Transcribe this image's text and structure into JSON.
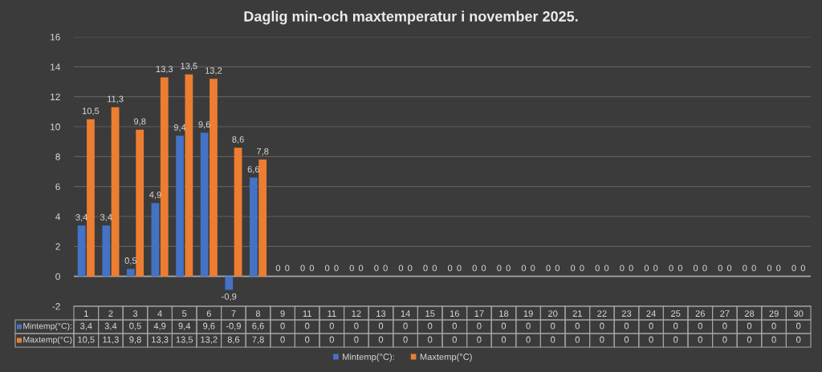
{
  "chart_data": {
    "type": "bar",
    "title": "Daglig min-och maxtemperatur i november 2025.",
    "categories": [
      "1",
      "2",
      "3",
      "4",
      "5",
      "6",
      "7",
      "8",
      "9",
      "11",
      "11",
      "12",
      "13",
      "14",
      "15",
      "16",
      "17",
      "18",
      "19",
      "20",
      "21",
      "22",
      "23",
      "24",
      "25",
      "26",
      "27",
      "28",
      "29",
      "30"
    ],
    "series": [
      {
        "name": "Mintemp(°C):",
        "color": "#4472c4",
        "values": [
          3.4,
          3.4,
          0.5,
          4.9,
          9.4,
          9.6,
          -0.9,
          6.6,
          0,
          0,
          0,
          0,
          0,
          0,
          0,
          0,
          0,
          0,
          0,
          0,
          0,
          0,
          0,
          0,
          0,
          0,
          0,
          0,
          0,
          0
        ],
        "value_labels": [
          "3,4",
          "3,4",
          "0,5",
          "4,9",
          "9,4",
          "9,6",
          "-0,9",
          "6,6",
          "0",
          "0",
          "0",
          "0",
          "0",
          "0",
          "0",
          "0",
          "0",
          "0",
          "0",
          "0",
          "0",
          "0",
          "0",
          "0",
          "0",
          "0",
          "0",
          "0",
          "0",
          "0"
        ]
      },
      {
        "name": "Maxtemp(°C)",
        "color": "#ed7d31",
        "values": [
          10.5,
          11.3,
          9.8,
          13.3,
          13.5,
          13.2,
          8.6,
          7.8,
          0,
          0,
          0,
          0,
          0,
          0,
          0,
          0,
          0,
          0,
          0,
          0,
          0,
          0,
          0,
          0,
          0,
          0,
          0,
          0,
          0,
          0
        ],
        "value_labels": [
          "10,5",
          "11,3",
          "9,8",
          "13,3",
          "13,5",
          "13,2",
          "8,6",
          "7,8",
          "0",
          "0",
          "0",
          "0",
          "0",
          "0",
          "0",
          "0",
          "0",
          "0",
          "0",
          "0",
          "0",
          "0",
          "0",
          "0",
          "0",
          "0",
          "0",
          "0",
          "0",
          "0"
        ]
      }
    ],
    "ylim": [
      -2,
      16
    ],
    "yticks": [
      -2,
      0,
      2,
      4,
      6,
      8,
      10,
      12,
      14,
      16
    ],
    "grid": "y",
    "legend": "bottom"
  }
}
